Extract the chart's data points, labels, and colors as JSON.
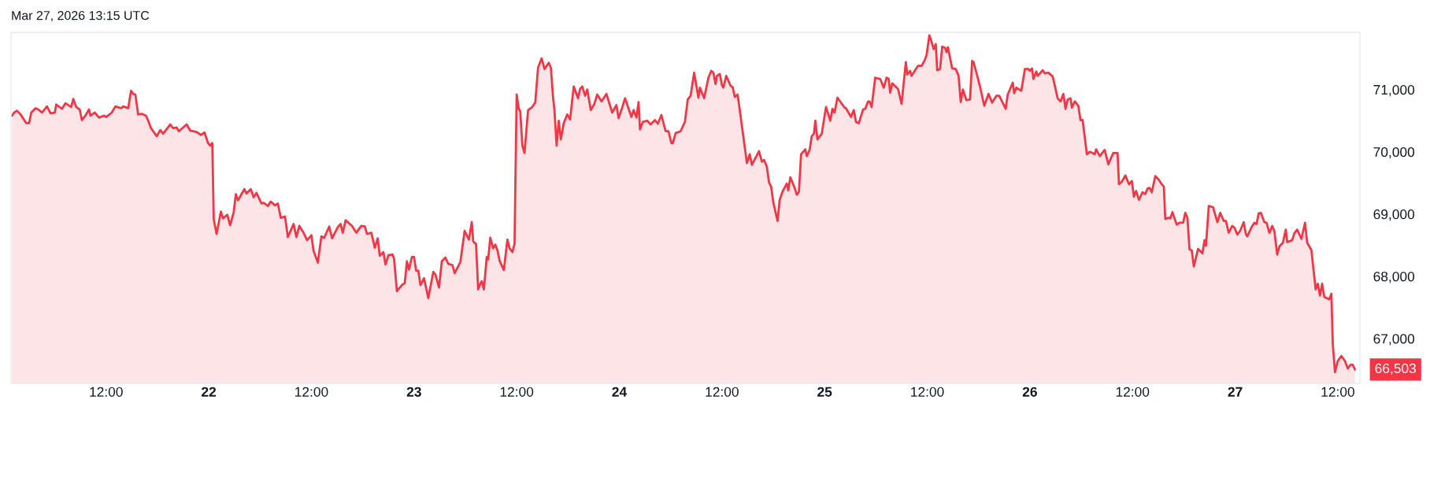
{
  "chart_data": {
    "type": "area",
    "title": "Mar 27, 2026 13:15 UTC",
    "color": "#f23645",
    "x": [
      "2026-03-21T01:00",
      "2026-03-21T01:15",
      "2026-03-21T01:35",
      "2026-03-21T02:00",
      "2026-03-21T02:40",
      "2026-03-21T03:00",
      "2026-03-21T03:15",
      "2026-03-21T03:45",
      "2026-03-21T04:10",
      "2026-03-21T04:30",
      "2026-03-21T05:05",
      "2026-03-21T05:30",
      "2026-03-21T06:00",
      "2026-03-21T06:10",
      "2026-03-21T06:50",
      "2026-03-21T07:15",
      "2026-03-21T07:55",
      "2026-03-21T08:10",
      "2026-03-21T08:30",
      "2026-03-21T08:55",
      "2026-03-21T09:10",
      "2026-03-21T09:35",
      "2026-03-21T10:00",
      "2026-03-21T10:10",
      "2026-03-21T10:40",
      "2026-03-21T11:10",
      "2026-03-21T11:45",
      "2026-03-21T12:00",
      "2026-03-21T12:40",
      "2026-03-21T13:05",
      "2026-03-21T13:45",
      "2026-03-21T14:00",
      "2026-03-21T14:35",
      "2026-03-21T14:55",
      "2026-03-21T15:10",
      "2026-03-21T15:25",
      "2026-03-21T15:45",
      "2026-03-21T16:10",
      "2026-03-21T16:40",
      "2026-03-21T16:55",
      "2026-03-21T17:15",
      "2026-03-21T17:55",
      "2026-03-21T18:20",
      "2026-03-21T18:40",
      "2026-03-21T19:30",
      "2026-03-21T19:50",
      "2026-03-21T20:15",
      "2026-03-21T20:30",
      "2026-03-21T21:25",
      "2026-03-21T21:50",
      "2026-03-21T22:35",
      "2026-03-21T23:05",
      "2026-03-21T23:30",
      "2026-03-21T23:55",
      "2026-03-22T00:10",
      "2026-03-22T00:25",
      "2026-03-22T00:35",
      "2026-03-22T00:55",
      "2026-03-22T01:25",
      "2026-03-22T01:40",
      "2026-03-22T02:10",
      "2026-03-22T02:30",
      "2026-03-22T02:55",
      "2026-03-22T03:10",
      "2026-03-22T03:25",
      "2026-03-22T04:10",
      "2026-03-22T04:25",
      "2026-03-22T04:55",
      "2026-03-22T05:15",
      "2026-03-22T05:35",
      "2026-03-22T06:10",
      "2026-03-22T06:25",
      "2026-03-22T06:55",
      "2026-03-22T07:15",
      "2026-03-22T07:45",
      "2026-03-22T08:05",
      "2026-03-22T08:25",
      "2026-03-22T08:55",
      "2026-03-22T09:15",
      "2026-03-22T09:55",
      "2026-03-22T10:15",
      "2026-03-22T10:35",
      "2026-03-22T11:05",
      "2026-03-22T11:30",
      "2026-03-22T12:00",
      "2026-03-22T12:15",
      "2026-03-22T12:45",
      "2026-03-22T13:10",
      "2026-03-22T13:30",
      "2026-03-22T14:05",
      "2026-03-22T14:25",
      "2026-03-22T15:05",
      "2026-03-22T15:25",
      "2026-03-22T15:40",
      "2026-03-22T16:00",
      "2026-03-22T16:45",
      "2026-03-22T17:15",
      "2026-03-22T17:50",
      "2026-03-22T18:15",
      "2026-03-22T18:30",
      "2026-03-22T19:00",
      "2026-03-22T19:25",
      "2026-03-22T19:45",
      "2026-03-22T20:00",
      "2026-03-22T20:25",
      "2026-03-22T20:40",
      "2026-03-22T21:00",
      "2026-03-22T21:30",
      "2026-03-22T21:40",
      "2026-03-22T22:00",
      "2026-03-22T22:35",
      "2026-03-22T22:55",
      "2026-03-22T23:10",
      "2026-03-22T23:25",
      "2026-03-22T23:45",
      "2026-03-23T00:00",
      "2026-03-23T00:15",
      "2026-03-23T00:30",
      "2026-03-23T00:45",
      "2026-03-23T01:10",
      "2026-03-23T01:40",
      "2026-03-23T02:15",
      "2026-03-23T02:30",
      "2026-03-23T02:55",
      "2026-03-23T03:15",
      "2026-03-23T03:40",
      "2026-03-23T04:00",
      "2026-03-23T04:30",
      "2026-03-23T04:45",
      "2026-03-23T05:25",
      "2026-03-23T05:55",
      "2026-03-23T06:25",
      "2026-03-23T06:45",
      "2026-03-23T06:55",
      "2026-03-23T07:15",
      "2026-03-23T07:30",
      "2026-03-23T07:45",
      "2026-03-23T07:55",
      "2026-03-23T08:10",
      "2026-03-23T08:30",
      "2026-03-23T08:40",
      "2026-03-23T08:55",
      "2026-03-23T09:15",
      "2026-03-23T09:30",
      "2026-03-23T09:45",
      "2026-03-23T10:00",
      "2026-03-23T10:30",
      "2026-03-23T10:55",
      "2026-03-23T11:10",
      "2026-03-23T11:30",
      "2026-03-23T11:45",
      "2026-03-23T12:00",
      "2026-03-23T12:15",
      "2026-03-23T12:25",
      "2026-03-23T12:40",
      "2026-03-23T12:55",
      "2026-03-23T13:20",
      "2026-03-23T13:45",
      "2026-03-23T14:10",
      "2026-03-23T14:30",
      "2026-03-23T14:55",
      "2026-03-23T15:15",
      "2026-03-23T15:45",
      "2026-03-23T16:00",
      "2026-03-23T16:15",
      "2026-03-23T16:25",
      "2026-03-23T16:40",
      "2026-03-23T16:55",
      "2026-03-23T17:10",
      "2026-03-23T17:30",
      "2026-03-23T17:55",
      "2026-03-23T18:15",
      "2026-03-23T18:40",
      "2026-03-23T19:10",
      "2026-03-23T19:25",
      "2026-03-23T19:40",
      "2026-03-23T20:00",
      "2026-03-23T20:15",
      "2026-03-23T20:40",
      "2026-03-23T21:05",
      "2026-03-23T21:25",
      "2026-03-23T21:55",
      "2026-03-23T22:30",
      "2026-03-23T23:10",
      "2026-03-23T23:40",
      "2026-03-23T23:55",
      "2026-03-24T00:20",
      "2026-03-24T00:40",
      "2026-03-24T01:25",
      "2026-03-24T01:40",
      "2026-03-24T02:00",
      "2026-03-24T02:15",
      "2026-03-24T02:25",
      "2026-03-24T02:45",
      "2026-03-24T03:15",
      "2026-03-24T03:40",
      "2026-03-24T04:10",
      "2026-03-24T04:30",
      "2026-03-24T04:55",
      "2026-03-24T05:25",
      "2026-03-24T05:45",
      "2026-03-24T06:05",
      "2026-03-24T06:15",
      "2026-03-24T06:35",
      "2026-03-24T07:10",
      "2026-03-24T07:40",
      "2026-03-24T08:00",
      "2026-03-24T08:20",
      "2026-03-24T08:45",
      "2026-03-24T09:15",
      "2026-03-24T09:25",
      "2026-03-24T09:55",
      "2026-03-24T10:25",
      "2026-03-24T10:45",
      "2026-03-24T11:00",
      "2026-03-24T11:15",
      "2026-03-24T11:25",
      "2026-03-24T11:45",
      "2026-03-24T12:00",
      "2026-03-24T12:10",
      "2026-03-24T12:30",
      "2026-03-24T13:00",
      "2026-03-24T13:15",
      "2026-03-24T13:30",
      "2026-03-24T13:50",
      "2026-03-24T14:05",
      "2026-03-24T14:55",
      "2026-03-24T15:15",
      "2026-03-24T15:30",
      "2026-03-24T16:20",
      "2026-03-24T16:40",
      "2026-03-24T16:55",
      "2026-03-24T17:15",
      "2026-03-24T17:30",
      "2026-03-24T17:45",
      "2026-03-24T18:00",
      "2026-03-24T18:30",
      "2026-03-24T18:45",
      "2026-03-24T19:05",
      "2026-03-24T19:35",
      "2026-03-24T19:45",
      "2026-03-24T20:00",
      "2026-03-24T20:30",
      "2026-03-24T20:45",
      "2026-03-24T21:00",
      "2026-03-24T21:15",
      "2026-03-24T21:45",
      "2026-03-24T21:55",
      "2026-03-24T22:15",
      "2026-03-24T22:30",
      "2026-03-24T22:45",
      "2026-03-24T22:55",
      "2026-03-24T23:10",
      "2026-03-24T23:40",
      "2026-03-25T00:10",
      "2026-03-25T00:40",
      "2026-03-25T00:55",
      "2026-03-25T01:10",
      "2026-03-25T01:30",
      "2026-03-25T02:20",
      "2026-03-25T02:30",
      "2026-03-25T03:05",
      "2026-03-25T03:25",
      "2026-03-25T03:40",
      "2026-03-25T04:00",
      "2026-03-25T04:30",
      "2026-03-25T04:45",
      "2026-03-25T05:05",
      "2026-03-25T05:15",
      "2026-03-25T05:30",
      "2026-03-25T05:55",
      "2026-03-25T06:30",
      "2026-03-25T06:55",
      "2026-03-25T07:15",
      "2026-03-25T07:30",
      "2026-03-25T07:40",
      "2026-03-25T07:55",
      "2026-03-25T08:35",
      "2026-03-25T09:00",
      "2026-03-25T09:30",
      "2026-03-25T09:40",
      "2026-03-25T10:00",
      "2026-03-25T10:10",
      "2026-03-25T10:35",
      "2026-03-25T10:55",
      "2026-03-25T11:20",
      "2026-03-25T11:40",
      "2026-03-25T11:55",
      "2026-03-25T12:15",
      "2026-03-25T12:25",
      "2026-03-25T12:45",
      "2026-03-25T13:00",
      "2026-03-25T13:10",
      "2026-03-25T13:30",
      "2026-03-25T13:45",
      "2026-03-25T14:05",
      "2026-03-25T14:15",
      "2026-03-25T14:25",
      "2026-03-25T14:55",
      "2026-03-25T15:20",
      "2026-03-25T15:40",
      "2026-03-25T15:55",
      "2026-03-25T16:10",
      "2026-03-25T16:35",
      "2026-03-25T17:00",
      "2026-03-25T17:15",
      "2026-03-25T17:25",
      "2026-03-25T18:00",
      "2026-03-25T18:10",
      "2026-03-25T18:40",
      "2026-03-25T19:10",
      "2026-03-25T19:35",
      "2026-03-25T20:05",
      "2026-03-25T20:25",
      "2026-03-25T20:45",
      "2026-03-25T21:10",
      "2026-03-25T21:25",
      "2026-03-25T22:00",
      "2026-03-25T22:10",
      "2026-03-25T22:25",
      "2026-03-25T23:00",
      "2026-03-25T23:25",
      "2026-03-25T23:50",
      "2026-03-26T00:00",
      "2026-03-26T00:15",
      "2026-03-26T00:25",
      "2026-03-26T00:45",
      "2026-03-26T00:55",
      "2026-03-26T01:30",
      "2026-03-26T01:45",
      "2026-03-26T02:10",
      "2026-03-26T02:40",
      "2026-03-26T03:15",
      "2026-03-26T03:35",
      "2026-03-26T03:55",
      "2026-03-26T04:10",
      "2026-03-26T04:25",
      "2026-03-26T04:45",
      "2026-03-26T04:55",
      "2026-03-26T05:15",
      "2026-03-26T05:40",
      "2026-03-26T05:55",
      "2026-03-26T06:10",
      "2026-03-26T06:40",
      "2026-03-26T07:00",
      "2026-03-26T07:20",
      "2026-03-26T07:35",
      "2026-03-26T07:45",
      "2026-03-26T08:10",
      "2026-03-26T08:45",
      "2026-03-26T09:10",
      "2026-03-26T09:45",
      "2026-03-26T10:15",
      "2026-03-26T10:25",
      "2026-03-26T10:45",
      "2026-03-26T11:10",
      "2026-03-26T11:35",
      "2026-03-26T11:55",
      "2026-03-26T12:10",
      "2026-03-26T12:25",
      "2026-03-26T12:45",
      "2026-03-26T13:10",
      "2026-03-26T13:30",
      "2026-03-26T13:45",
      "2026-03-26T14:00",
      "2026-03-26T14:15",
      "2026-03-26T14:40",
      "2026-03-26T15:05",
      "2026-03-26T15:25",
      "2026-03-26T15:40",
      "2026-03-26T15:50",
      "2026-03-26T16:10",
      "2026-03-26T16:25",
      "2026-03-26T16:40",
      "2026-03-26T17:10",
      "2026-03-26T17:30",
      "2026-03-26T17:55",
      "2026-03-26T18:10",
      "2026-03-26T18:25",
      "2026-03-26T18:40",
      "2026-03-26T18:55",
      "2026-03-26T19:10",
      "2026-03-26T19:40",
      "2026-03-26T20:10",
      "2026-03-26T20:25",
      "2026-03-26T20:35",
      "2026-03-26T20:55",
      "2026-03-26T21:25",
      "2026-03-26T21:55",
      "2026-03-26T22:15",
      "2026-03-26T22:40",
      "2026-03-26T22:55",
      "2026-03-26T23:15",
      "2026-03-26T23:40",
      "2026-03-26T23:55",
      "2026-03-27T00:15",
      "2026-03-27T00:35",
      "2026-03-27T01:00",
      "2026-03-27T01:15",
      "2026-03-27T01:25",
      "2026-03-27T01:55",
      "2026-03-27T02:15",
      "2026-03-27T02:30",
      "2026-03-27T02:45",
      "2026-03-27T03:00",
      "2026-03-27T03:25",
      "2026-03-27T03:40",
      "2026-03-27T04:00",
      "2026-03-27T04:20",
      "2026-03-27T04:35",
      "2026-03-27T04:55",
      "2026-03-27T05:10",
      "2026-03-27T05:35",
      "2026-03-27T05:55",
      "2026-03-27T06:05",
      "2026-03-27T06:40",
      "2026-03-27T06:55",
      "2026-03-27T07:15",
      "2026-03-27T07:45",
      "2026-03-27T08:10",
      "2026-03-27T08:25",
      "2026-03-27T08:55",
      "2026-03-27T09:05",
      "2026-03-27T09:25",
      "2026-03-27T09:40",
      "2026-03-27T09:55",
      "2026-03-27T10:10",
      "2026-03-27T10:25",
      "2026-03-27T11:00",
      "2026-03-27T11:15",
      "2026-03-27T11:25",
      "2026-03-27T11:40",
      "2026-03-27T12:00",
      "2026-03-27T12:25",
      "2026-03-27T12:50",
      "2026-03-27T13:10",
      "2026-03-27T13:30",
      "2026-03-27T13:45",
      "2026-03-27T14:00"
    ],
    "values": [
      70580,
      70630,
      70660,
      70600,
      70460,
      70460,
      70630,
      70700,
      70670,
      70630,
      70730,
      70620,
      70630,
      70760,
      70690,
      70780,
      70720,
      70850,
      70720,
      70680,
      70510,
      70580,
      70680,
      70580,
      70630,
      70550,
      70580,
      70560,
      70630,
      70730,
      70700,
      70730,
      70700,
      70980,
      70930,
      70920,
      70600,
      70610,
      70580,
      70500,
      70380,
      70250,
      70350,
      70290,
      70440,
      70380,
      70390,
      70330,
      70440,
      70340,
      70320,
      70270,
      70310,
      70140,
      70100,
      70140,
      68920,
      68680,
      69040,
      68930,
      68990,
      68820,
      69030,
      69320,
      69220,
      69400,
      69330,
      69400,
      69270,
      69340,
      69170,
      69180,
      69130,
      69200,
      69140,
      69170,
      68940,
      68960,
      68630,
      68840,
      68630,
      68810,
      68700,
      68580,
      68660,
      68410,
      68220,
      68640,
      68620,
      68800,
      68610,
      68790,
      68840,
      68700,
      68900,
      68810,
      68700,
      68810,
      68800,
      68680,
      68700,
      68460,
      68610,
      68330,
      68390,
      68190,
      68340,
      68350,
      68280,
      67760,
      67860,
      67890,
      68240,
      68110,
      68310,
      68310,
      68090,
      68090,
      67860,
      67970,
      67650,
      68070,
      68030,
      67820,
      68240,
      68300,
      68200,
      68180,
      68050,
      68230,
      68730,
      68590,
      68870,
      68560,
      68520,
      67790,
      67880,
      67920,
      67790,
      68310,
      68270,
      68620,
      68450,
      68510,
      68420,
      68250,
      68100,
      68590,
      68450,
      68390,
      68520,
      70920,
      70690,
      70650,
      70100,
      69980,
      70670,
      70710,
      70790,
      71350,
      71500,
      71330,
      71430,
      71350,
      70880,
      70670,
      70100,
      70500,
      70200,
      70460,
      70600,
      70520,
      71050,
      70860,
      71010,
      71050,
      70900,
      71000,
      70670,
      70770,
      70920,
      70810,
      70930,
      70630,
      70750,
      70540,
      70710,
      70860,
      70560,
      70670,
      70550,
      70800,
      70360,
      70480,
      70500,
      70440,
      70510,
      70450,
      70590,
      70330,
      70330,
      70140,
      70140,
      70300,
      70330,
      70480,
      70840,
      70900,
      71270,
      70870,
      71030,
      70860,
      71190,
      71300,
      71270,
      71090,
      71220,
      71250,
      71070,
      71030,
      71220,
      71060,
      71040,
      70880,
      70920,
      70670,
      69820,
      69960,
      69790,
      70010,
      69840,
      69870,
      69760,
      69510,
      69440,
      69190,
      68890,
      69230,
      69360,
      69490,
      69380,
      69590,
      69420,
      69310,
      69360,
      69960,
      70040,
      69930,
      70030,
      70250,
      70290,
      70500,
      70200,
      70290,
      70720,
      70500,
      70690,
      70630,
      70870,
      70710,
      70700,
      70560,
      70670,
      70480,
      70460,
      70680,
      70690,
      70810,
      70810,
      70720,
      71190,
      71170,
      71030,
      71190,
      71170,
      70950,
      71100,
      71010,
      70770,
      71440,
      71240,
      71300,
      71220,
      71310,
      71380,
      71380,
      71460,
      71550,
      71870,
      71810,
      71650,
      71730,
      71310,
      71330,
      71690,
      71670,
      71600,
      71680,
      71340,
      71330,
      71220,
      70800,
      71000,
      70830,
      70840,
      71460,
      71440,
      71140,
      71050,
      70740,
      70930,
      70790,
      70900,
      70900,
      70810,
      70690,
      70920,
      71110,
      70940,
      71030,
      70980,
      71330,
      71330,
      71300,
      71340,
      71170,
      71290,
      71220,
      71310,
      71260,
      71270,
      71210,
      70860,
      70810,
      70930,
      70690,
      70840,
      70860,
      70710,
      70810,
      70740,
      70510,
      70510,
      69960,
      70000,
      69980,
      69960,
      70040,
      69930,
      70030,
      69800,
      69980,
      69980,
      69480,
      69520,
      69620,
      69480,
      69530,
      69280,
      69370,
      69230,
      69350,
      69320,
      69410,
      69420,
      69350,
      69610,
      69550,
      69480,
      69440,
      68920,
      68940,
      68930,
      69030,
      68830,
      68860,
      68860,
      69020,
      68940,
      68430,
      68420,
      68160,
      68440,
      68370,
      68580,
      68490,
      69130,
      69110,
      68870,
      69020,
      68890,
      68890,
      68700,
      68810,
      68780,
      68670,
      68730,
      68870,
      68680,
      68640,
      68790,
      68860,
      68840,
      69010,
      69020,
      68870,
      68860,
      68700,
      68810,
      68730,
      68350,
      68480,
      68540,
      68750,
      68550,
      68580,
      68690,
      68750,
      68600,
      68860,
      68540,
      68420,
      68200,
      67790,
      67880,
      67690,
      67880,
      67670,
      67630,
      67720,
      66910,
      66460,
      66640,
      66720,
      66640,
      66520,
      66580,
      66580,
      66503
    ],
    "xlim": [
      "2026-03-21T00:53",
      "2026-03-27T14:35"
    ],
    "xticks": [
      {
        "value": "2026-03-21T12:00",
        "label": "12:00"
      },
      {
        "value": "2026-03-22",
        "label": "22"
      },
      {
        "value": "2026-03-22T12:00",
        "label": "12:00"
      },
      {
        "value": "2026-03-23",
        "label": "23"
      },
      {
        "value": "2026-03-23T12:00",
        "label": "12:00"
      },
      {
        "value": "2026-03-24",
        "label": "24"
      },
      {
        "value": "2026-03-24T12:00",
        "label": "12:00"
      },
      {
        "value": "2026-03-25",
        "label": "25"
      },
      {
        "value": "2026-03-25T12:00",
        "label": "12:00"
      },
      {
        "value": "2026-03-26",
        "label": "26"
      },
      {
        "value": "2026-03-26T12:00",
        "label": "12:00"
      },
      {
        "value": "2026-03-27",
        "label": "27"
      },
      {
        "value": "2026-03-27T12:00",
        "label": "12:00"
      }
    ],
    "ylim": [
      66280,
      71920
    ],
    "yticks": [
      {
        "value": 67000,
        "label": "67,000"
      },
      {
        "value": 68000,
        "label": "68,000"
      },
      {
        "value": 69000,
        "label": "69,000"
      },
      {
        "value": 70000,
        "label": "70,000"
      },
      {
        "value": 71000,
        "label": "71,000"
      }
    ],
    "annotations": [
      {
        "text": "66,503",
        "x": "2026-03-27T14:00",
        "y": 66503
      }
    ],
    "grid": false
  }
}
